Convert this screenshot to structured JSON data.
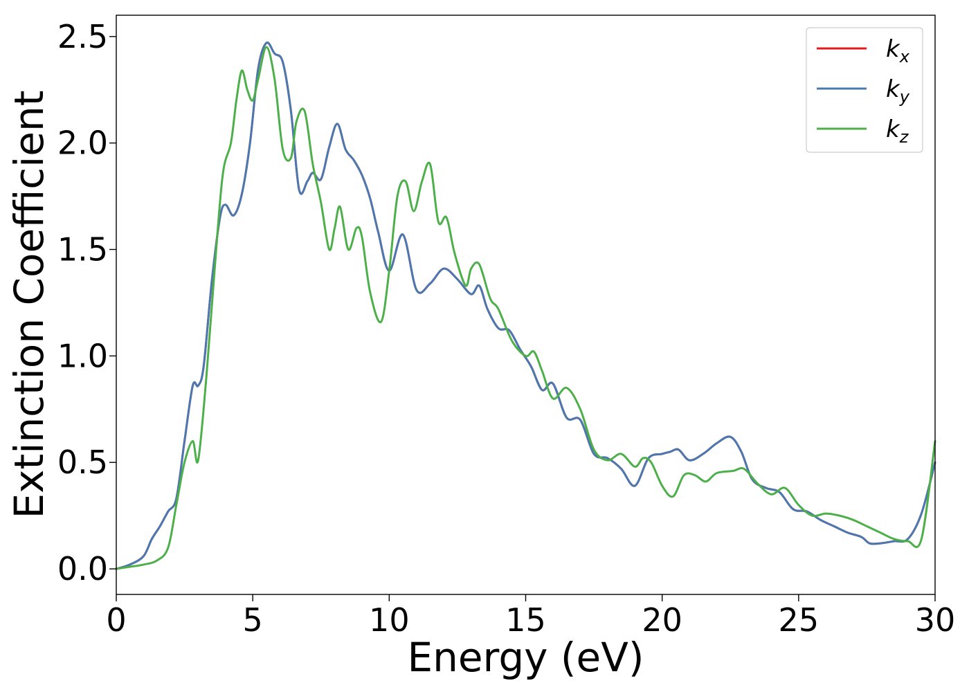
{
  "chart_data": {
    "type": "line",
    "title": "",
    "xlabel": "Energy (eV)",
    "ylabel": "Extinction Coefficient",
    "xlim": [
      0,
      30
    ],
    "ylim": [
      -0.12,
      2.6
    ],
    "xticks": [
      0,
      5,
      10,
      15,
      20,
      25,
      30
    ],
    "xtick_labels": [
      "0",
      "5",
      "10",
      "15",
      "20",
      "25",
      "30"
    ],
    "yticks": [
      0.0,
      0.5,
      1.0,
      1.5,
      2.0,
      2.5
    ],
    "ytick_labels": [
      "0.0",
      "0.5",
      "1.0",
      "1.5",
      "2.0",
      "2.5"
    ],
    "grid": false,
    "legend_position": "top-right",
    "series": [
      {
        "name": "kx",
        "label_base": "k",
        "label_sub": "x",
        "color": "#e41a1c",
        "x": [
          0,
          0.5,
          1.0,
          1.3,
          1.6,
          1.9,
          2.2,
          2.5,
          2.8,
          3.0,
          3.2,
          3.5,
          3.8,
          4.0,
          4.3,
          4.6,
          4.9,
          5.2,
          5.5,
          5.8,
          6.1,
          6.4,
          6.7,
          7.0,
          7.2,
          7.5,
          7.8,
          8.1,
          8.4,
          8.7,
          9.0,
          9.3,
          9.6,
          10.0,
          10.5,
          11.0,
          11.5,
          12.0,
          12.5,
          13.0,
          13.3,
          13.6,
          14.0,
          14.4,
          14.8,
          15.2,
          15.6,
          16.0,
          16.5,
          17.0,
          17.5,
          18.0,
          18.5,
          19.0,
          19.5,
          20.0,
          20.3,
          20.6,
          21.0,
          21.5,
          22.0,
          22.5,
          22.9,
          23.3,
          23.8,
          24.3,
          24.8,
          25.3,
          25.8,
          26.3,
          26.8,
          27.3,
          27.6,
          28.0,
          28.5,
          29.0,
          29.5,
          30.0
        ],
        "y": [
          0.0,
          0.02,
          0.06,
          0.14,
          0.2,
          0.27,
          0.33,
          0.6,
          0.86,
          0.86,
          0.95,
          1.35,
          1.65,
          1.71,
          1.66,
          1.76,
          2.0,
          2.35,
          2.47,
          2.42,
          2.38,
          2.15,
          1.78,
          1.82,
          1.86,
          1.83,
          1.98,
          2.09,
          1.97,
          1.92,
          1.85,
          1.74,
          1.58,
          1.4,
          1.57,
          1.31,
          1.34,
          1.41,
          1.36,
          1.29,
          1.33,
          1.22,
          1.13,
          1.12,
          1.03,
          0.95,
          0.84,
          0.87,
          0.71,
          0.7,
          0.54,
          0.52,
          0.47,
          0.39,
          0.52,
          0.54,
          0.55,
          0.56,
          0.51,
          0.54,
          0.59,
          0.62,
          0.55,
          0.42,
          0.38,
          0.36,
          0.28,
          0.27,
          0.23,
          0.2,
          0.17,
          0.15,
          0.12,
          0.12,
          0.13,
          0.14,
          0.26,
          0.5
        ]
      },
      {
        "name": "ky",
        "label_base": "k",
        "label_sub": "y",
        "color": "#4a78b0",
        "x": [
          0,
          0.5,
          1.0,
          1.3,
          1.6,
          1.9,
          2.2,
          2.5,
          2.8,
          3.0,
          3.2,
          3.5,
          3.8,
          4.0,
          4.3,
          4.6,
          4.9,
          5.2,
          5.5,
          5.8,
          6.1,
          6.4,
          6.7,
          7.0,
          7.2,
          7.5,
          7.8,
          8.1,
          8.4,
          8.7,
          9.0,
          9.3,
          9.6,
          10.0,
          10.5,
          11.0,
          11.5,
          12.0,
          12.5,
          13.0,
          13.3,
          13.6,
          14.0,
          14.4,
          14.8,
          15.2,
          15.6,
          16.0,
          16.5,
          17.0,
          17.5,
          18.0,
          18.5,
          19.0,
          19.5,
          20.0,
          20.3,
          20.6,
          21.0,
          21.5,
          22.0,
          22.5,
          22.9,
          23.3,
          23.8,
          24.3,
          24.8,
          25.3,
          25.8,
          26.3,
          26.8,
          27.3,
          27.6,
          28.0,
          28.5,
          29.0,
          29.5,
          30.0
        ],
        "y": [
          0.0,
          0.02,
          0.06,
          0.14,
          0.2,
          0.27,
          0.33,
          0.6,
          0.86,
          0.86,
          0.95,
          1.35,
          1.65,
          1.71,
          1.66,
          1.76,
          2.0,
          2.35,
          2.47,
          2.42,
          2.38,
          2.15,
          1.78,
          1.82,
          1.86,
          1.83,
          1.98,
          2.09,
          1.97,
          1.92,
          1.85,
          1.74,
          1.58,
          1.4,
          1.57,
          1.31,
          1.34,
          1.41,
          1.36,
          1.29,
          1.33,
          1.22,
          1.13,
          1.12,
          1.03,
          0.95,
          0.84,
          0.87,
          0.71,
          0.7,
          0.54,
          0.52,
          0.47,
          0.39,
          0.52,
          0.54,
          0.55,
          0.56,
          0.51,
          0.54,
          0.59,
          0.62,
          0.55,
          0.42,
          0.38,
          0.36,
          0.28,
          0.27,
          0.23,
          0.2,
          0.17,
          0.15,
          0.12,
          0.12,
          0.13,
          0.14,
          0.26,
          0.5
        ]
      },
      {
        "name": "kz",
        "label_base": "k",
        "label_sub": "z",
        "color": "#4daf4a",
        "x": [
          0,
          0.5,
          1.0,
          1.5,
          1.9,
          2.2,
          2.5,
          2.8,
          3.0,
          3.3,
          3.6,
          3.9,
          4.2,
          4.4,
          4.6,
          4.8,
          5.0,
          5.2,
          5.5,
          5.8,
          6.1,
          6.4,
          6.6,
          6.9,
          7.2,
          7.5,
          7.8,
          8.0,
          8.2,
          8.5,
          8.8,
          9.0,
          9.3,
          9.7,
          10.0,
          10.3,
          10.6,
          10.9,
          11.2,
          11.5,
          11.8,
          12.1,
          12.4,
          12.8,
          13.0,
          13.3,
          13.7,
          14.0,
          14.5,
          15.0,
          15.3,
          15.6,
          16.0,
          16.5,
          17.0,
          17.5,
          18.0,
          18.5,
          19.0,
          19.3,
          19.6,
          20.0,
          20.4,
          20.8,
          21.2,
          21.6,
          22.0,
          22.6,
          23.0,
          23.5,
          24.0,
          24.5,
          25.0,
          25.5,
          26.0,
          26.5,
          27.0,
          27.5,
          28.0,
          28.5,
          29.0,
          29.5,
          30.0
        ],
        "y": [
          0.0,
          0.01,
          0.02,
          0.04,
          0.1,
          0.3,
          0.5,
          0.6,
          0.51,
          0.9,
          1.4,
          1.85,
          2.0,
          2.2,
          2.34,
          2.25,
          2.2,
          2.3,
          2.45,
          2.3,
          1.97,
          1.93,
          2.1,
          2.15,
          1.9,
          1.72,
          1.5,
          1.6,
          1.7,
          1.5,
          1.6,
          1.56,
          1.3,
          1.16,
          1.4,
          1.75,
          1.82,
          1.68,
          1.82,
          1.9,
          1.63,
          1.65,
          1.48,
          1.33,
          1.41,
          1.43,
          1.27,
          1.22,
          1.07,
          1.0,
          1.02,
          0.93,
          0.8,
          0.85,
          0.75,
          0.56,
          0.51,
          0.54,
          0.48,
          0.52,
          0.5,
          0.39,
          0.34,
          0.44,
          0.44,
          0.41,
          0.45,
          0.46,
          0.47,
          0.4,
          0.35,
          0.38,
          0.3,
          0.25,
          0.26,
          0.25,
          0.23,
          0.2,
          0.17,
          0.14,
          0.13,
          0.14,
          0.6
        ]
      }
    ]
  }
}
